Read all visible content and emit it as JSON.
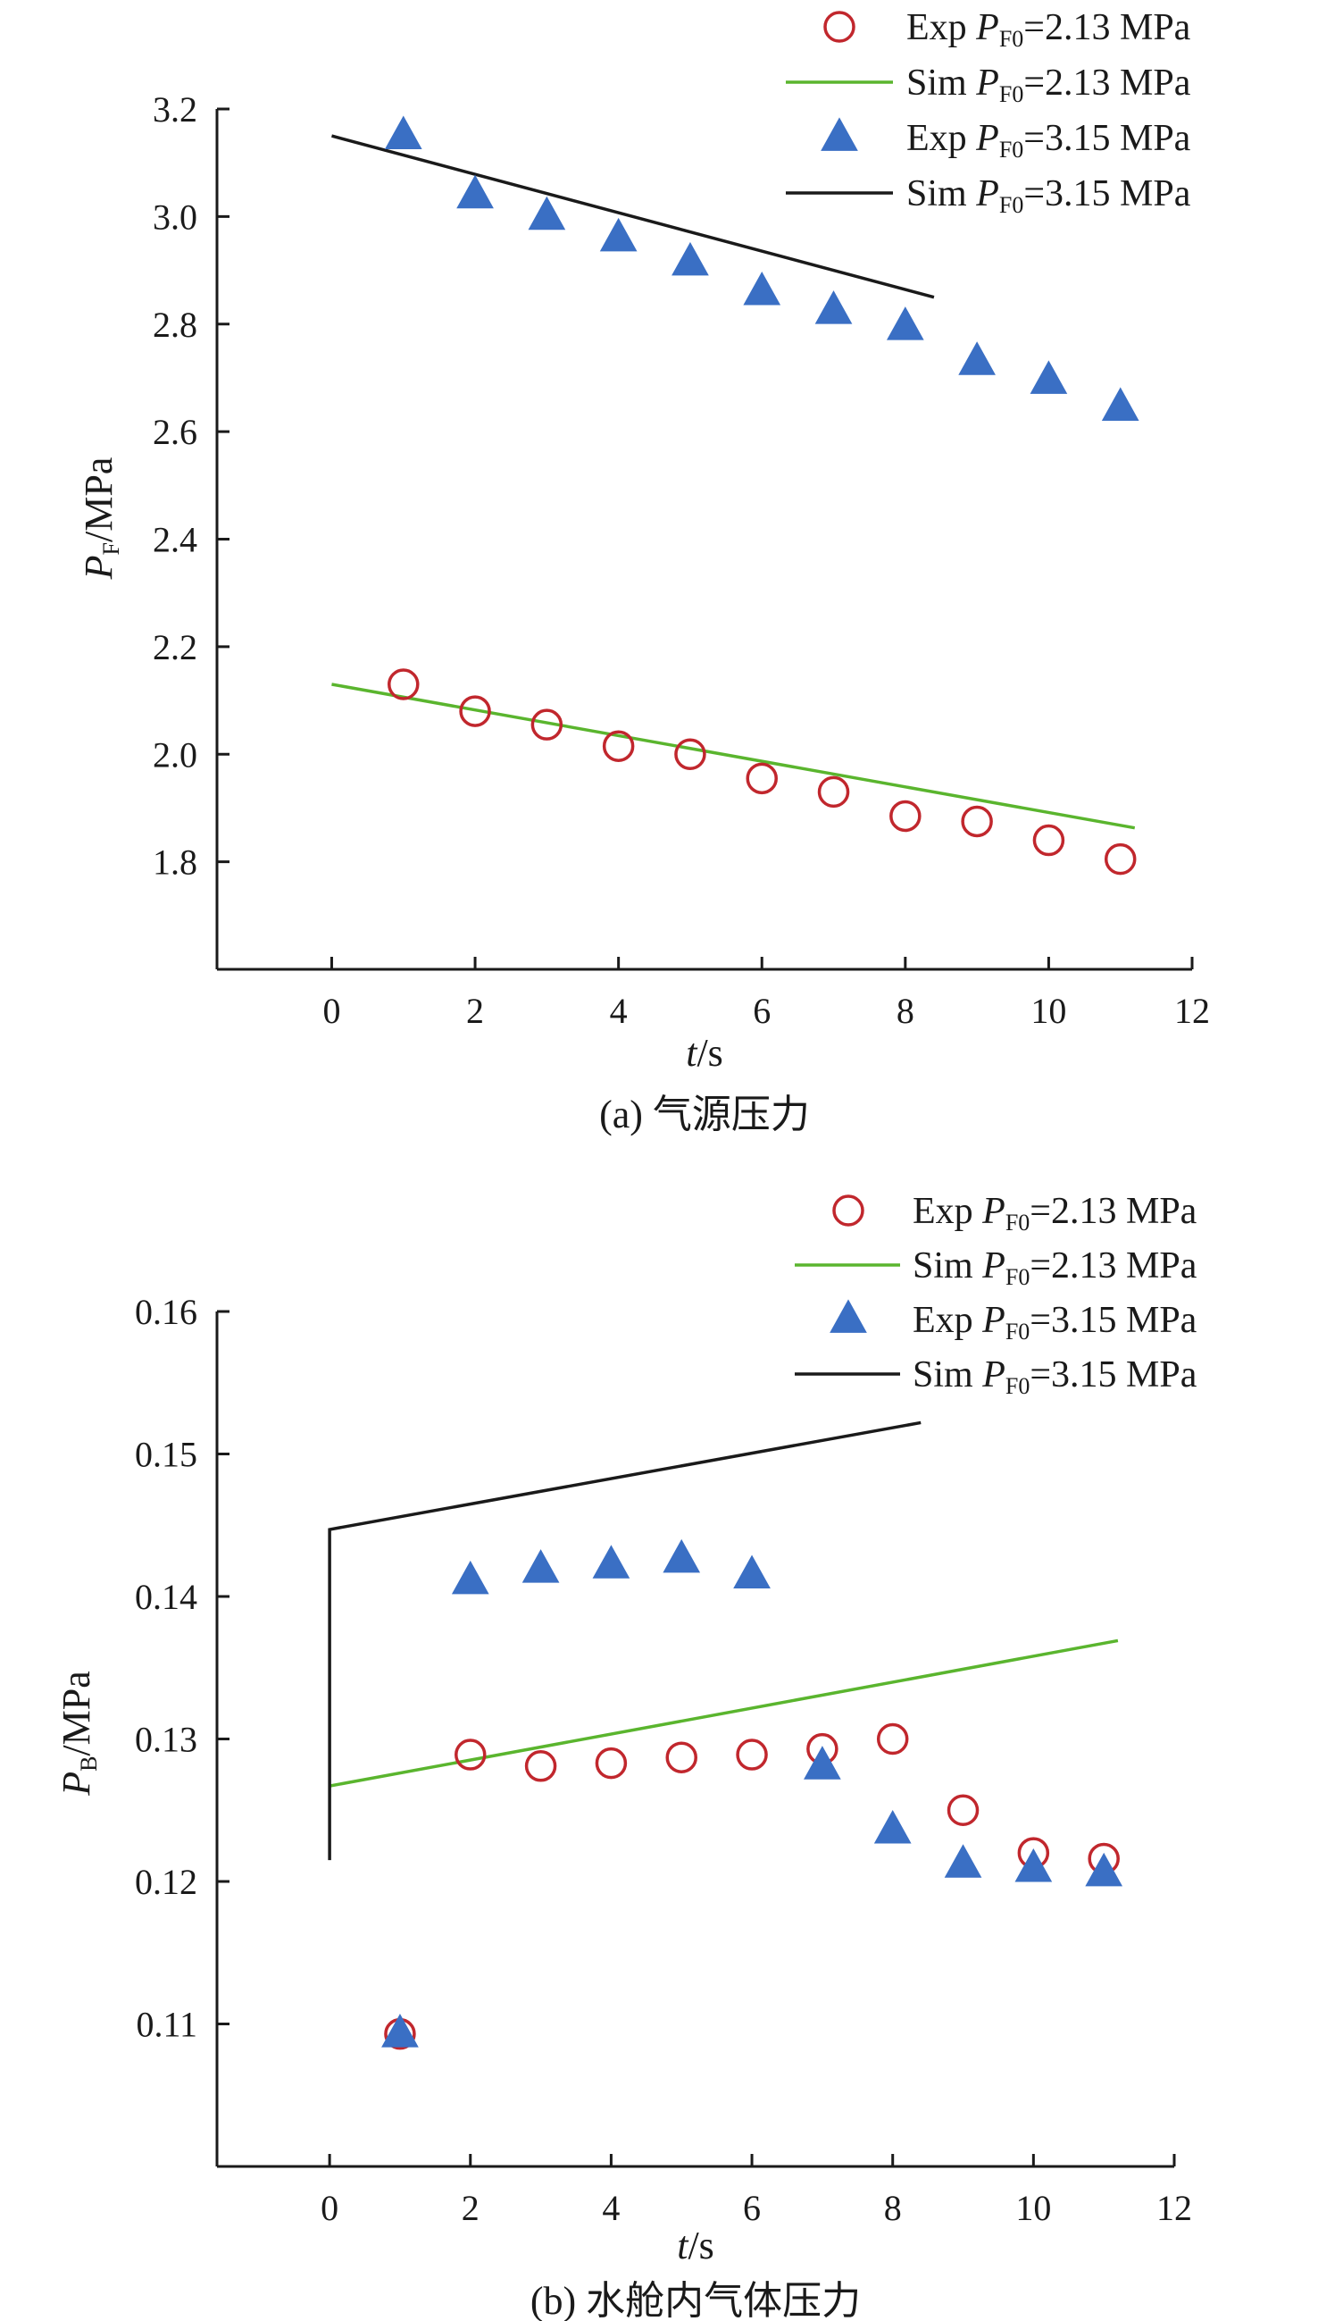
{
  "chart_data": [
    {
      "type": "scatter",
      "caption": "(a) 气源压力",
      "xlabel": {
        "italic": "t",
        "rest": "/s"
      },
      "ylabel": {
        "italic": "P",
        "sub": "F",
        "rest": "/MPa"
      },
      "xlim": [
        -1.6,
        12
      ],
      "ylim": [
        1.6,
        3.2
      ],
      "xticks": [
        "0",
        "2",
        "4",
        "6",
        "8",
        "10",
        "12"
      ],
      "yticks": [
        "1.8",
        "2.0",
        "2.2",
        "2.4",
        "2.6",
        "2.8",
        "3.0",
        "3.2"
      ],
      "legend_position": "top-right",
      "series": [
        {
          "kind": "points",
          "marker": "circle",
          "color": "#c1272d",
          "legend": {
            "pre": "Exp ",
            "italic": "P",
            "sub": "F0",
            "post": "=2.13 MPa"
          },
          "x": [
            1,
            2,
            3,
            4,
            5,
            6,
            7,
            8,
            9,
            10,
            11
          ],
          "y": [
            2.13,
            2.08,
            2.055,
            2.015,
            2.0,
            1.955,
            1.93,
            1.885,
            1.875,
            1.84,
            1.805
          ]
        },
        {
          "kind": "line",
          "color": "#5ab52e",
          "legend": {
            "pre": "Sim ",
            "italic": "P",
            "sub": "F0",
            "post": "=2.13 MPa"
          },
          "x": [
            0,
            11.2
          ],
          "y": [
            2.13,
            1.863
          ]
        },
        {
          "kind": "points",
          "marker": "triangle",
          "color": "#3a6fc4",
          "legend": {
            "pre": "Exp ",
            "italic": "P",
            "sub": "F0",
            "post": "=3.15 MPa"
          },
          "x": [
            1,
            2,
            3,
            4,
            5,
            6,
            7,
            8,
            9,
            10,
            11
          ],
          "y": [
            3.15,
            3.04,
            3.0,
            2.96,
            2.915,
            2.86,
            2.825,
            2.795,
            2.73,
            2.695,
            2.645
          ]
        },
        {
          "kind": "line",
          "color": "#1a1a1a",
          "legend": {
            "pre": "Sim ",
            "italic": "P",
            "sub": "F0",
            "post": "=3.15 MPa"
          },
          "x": [
            0,
            8.4
          ],
          "y": [
            3.15,
            2.85
          ]
        }
      ]
    },
    {
      "type": "scatter",
      "caption": "(b) 水舱内气体压力",
      "xlabel": {
        "italic": "t",
        "rest": "/s"
      },
      "ylabel": {
        "italic": "P",
        "sub": "B",
        "rest": "/MPa"
      },
      "xlim": [
        -1.6,
        12
      ],
      "ylim": [
        0.1,
        0.16
      ],
      "xticks": [
        "0",
        "2",
        "4",
        "6",
        "8",
        "10",
        "12"
      ],
      "yticks": [
        "0.11",
        "0.12",
        "0.13",
        "0.14",
        "0.15",
        "0.16"
      ],
      "legend_position": "top-right",
      "series": [
        {
          "kind": "points",
          "marker": "circle",
          "color": "#c1272d",
          "legend": {
            "pre": "Exp ",
            "italic": "P",
            "sub": "F0",
            "post": "=2.13 MPa"
          },
          "x": [
            1,
            2,
            3,
            4,
            5,
            6,
            7,
            8,
            9,
            10,
            11
          ],
          "y": [
            0.1093,
            0.1289,
            0.1281,
            0.1283,
            0.1287,
            0.1289,
            0.1293,
            0.13,
            0.125,
            0.122,
            0.1216
          ]
        },
        {
          "kind": "line",
          "color": "#5ab52e",
          "legend": {
            "pre": "Sim ",
            "italic": "P",
            "sub": "F0",
            "post": "=2.13 MPa"
          },
          "x": [
            0,
            11.2
          ],
          "y": [
            0.1267,
            0.1369
          ]
        },
        {
          "kind": "points",
          "marker": "triangle",
          "color": "#3a6fc4",
          "legend": {
            "pre": "Exp ",
            "italic": "P",
            "sub": "F0",
            "post": "=3.15 MPa"
          },
          "x": [
            1,
            2,
            3,
            4,
            5,
            6,
            7,
            8,
            9,
            10,
            11
          ],
          "y": [
            0.1093,
            0.1411,
            0.1419,
            0.1422,
            0.1426,
            0.1415,
            0.1281,
            0.1236,
            0.1212,
            0.1209,
            0.1206
          ]
        },
        {
          "kind": "line",
          "color": "#1a1a1a",
          "legend": {
            "pre": "Sim ",
            "italic": "P",
            "sub": "F0",
            "post": "=3.15 MPa"
          },
          "x": [
            0,
            0,
            8.4
          ],
          "y": [
            0.1215,
            0.1447,
            0.1522
          ]
        }
      ]
    }
  ]
}
